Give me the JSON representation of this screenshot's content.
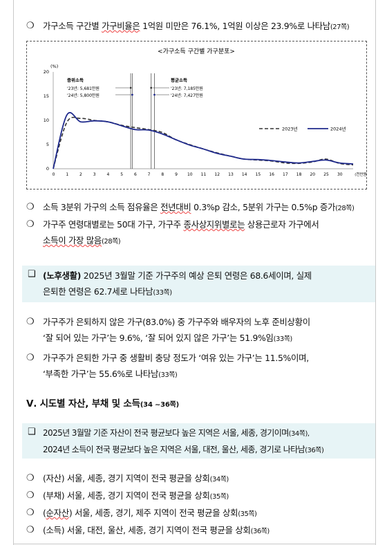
{
  "items": {
    "p1": {
      "bullet": "❍",
      "a": "가구소득 구간별 ",
      "u": "가구비율은",
      "b": " 1억원 미만은 76.1%, 1억원 이상은 23.9%로 나타남",
      "ref": "(27쪽)"
    },
    "p2": {
      "bullet": "❍",
      "a": "소득 3분위 가구의 소득 점유율은 ",
      "u": "전년대비",
      "b": " 0.3%p 감소, 5분위 가구는 0.5%p 증가",
      "ref": "(28쪽)"
    },
    "p3": {
      "bullet": "❍",
      "a": "가구주 연령대별로는 50대 가구, 가구주 ",
      "u": "종사상지위별로는",
      "b": " 상용근로자 가구에서",
      "line2": "소득이 가장 많음",
      "ref": "(28쪽)"
    },
    "box1": {
      "bullet": "❑",
      "bold": "(노후생활)",
      "line1": " 2025년 3월말 기준 가구주의 예상 은퇴 연령은 68.6세이며, 실제",
      "line2": "은퇴한 연령은 62.7세로 나타남",
      "ref": "(33쪽)"
    },
    "p4": {
      "bullet": "❍",
      "line1": "가구주가 은퇴하지 않은 가구(83.0%) 중 가구주와 배우자의 노후 준비상황이",
      "line2": "‘잘 되어 있는 가구’는 9.6%, ‘잘 되어 있지 않은 가구’는 51.9%임",
      "ref": "(33쪽)"
    },
    "p5": {
      "bullet": "❍",
      "line1": "가구주가 은퇴한 가구 중 생활비 충당 정도가 ‘여유 있는 가구’는 11.5%이며,",
      "line2": "‘부족한 가구’는 55.6%로 나타남",
      "ref": "(33쪽)"
    },
    "heading": {
      "main": "Ⅴ. 시도별 자산, 부채 및 소득",
      "ref": "(34 ~36쪽)"
    },
    "box2": {
      "bullet": "❑",
      "line1": "2025년 3월말 기준 자산이 전국 평균보다 높은 지역은 서울, 세종, 경기이며",
      "ref1": "(34쪽),",
      "line2": "2024년 소득이 전국 평균보다 높은 지역은 서울, 대전, 울산, 세종, 경기로 나타남",
      "ref2": "(36쪽)"
    },
    "p6": {
      "bullet": "❍",
      "a": "(자산) 서울, 세종, 경기 지역이 전국 평균을 상회",
      "ref": "(34쪽)"
    },
    "p7": {
      "bullet": "❍",
      "a": "(부채) 서울, 세종, 경기 지역이 전국 평균을 상회",
      "ref": "(35쪽)"
    },
    "p8": {
      "bullet": "❍",
      "pre": "(",
      "u": "순자산",
      "a": ") 서울, 세종, 경기, 제주 지역이 전국 평균을 상회",
      "ref": "(35쪽)"
    },
    "p9": {
      "bullet": "❍",
      "a": "(소득) 서울, 대전, 울산, 세종, 경기 지역이 전국 평균을 상회",
      "ref": "(36쪽)"
    }
  },
  "chart_data": {
    "type": "line",
    "title": "<가구소득 구간별 가구분포>",
    "ylabel": "(%)",
    "xlabel": "(천만원)",
    "ylim": [
      0,
      20
    ],
    "yticks": [
      0,
      5,
      10,
      15,
      20
    ],
    "x_tick_labels": [
      "0",
      "1",
      "2",
      "3",
      "4",
      "5",
      "6",
      "7",
      "8",
      "9",
      "10",
      "11",
      "12",
      "13",
      "14",
      "15",
      "16",
      "17",
      "18",
      "20",
      "25",
      "30"
    ],
    "annotations": {
      "median": {
        "title": "중위소득",
        "l1": "'23년: 5,681만원",
        "l2": "'24년: 5,800만원",
        "x23": 5.681,
        "x24": 5.8
      },
      "mean": {
        "title": "평균소득",
        "l1": "'23년: 7,185만원",
        "l2": "'24년: 7,427만원",
        "x23": 7.185,
        "x24": 7.427
      }
    },
    "legend_position": "right",
    "series": [
      {
        "name": "2023년",
        "style": "dashed",
        "color": "#333333",
        "y": [
          0,
          9.6,
          10.4,
          10.0,
          9.7,
          9.0,
          8.5,
          8.1,
          7.5,
          6.0,
          5.0,
          4.1,
          3.3,
          2.6,
          2.0,
          1.8,
          1.6,
          1.2,
          1.1,
          1.4,
          2.0,
          1.1,
          0.8
        ]
      },
      {
        "name": "2024년",
        "style": "solid",
        "color": "#1f2a8c",
        "y": [
          0,
          11.1,
          9.7,
          9.9,
          9.7,
          8.9,
          8.1,
          8.0,
          7.2,
          6.0,
          4.9,
          4.1,
          3.2,
          2.6,
          2.0,
          1.9,
          1.7,
          1.4,
          1.2,
          1.5,
          1.8,
          1.2,
          1.0
        ]
      }
    ]
  }
}
